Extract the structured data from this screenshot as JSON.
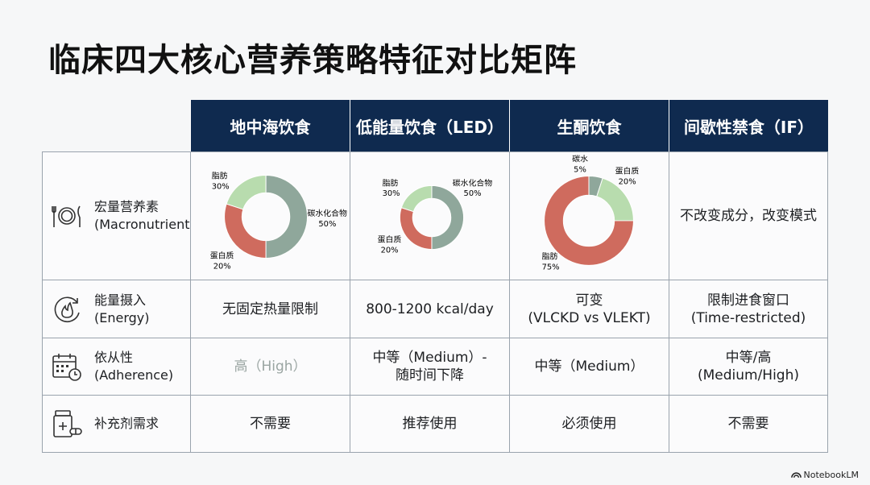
{
  "title": "临床四大核心营养策略特征对比矩阵",
  "columns": [
    "地中海饮食",
    "低能量饮食（LED）",
    "生酮饮食",
    "间歇性禁食（IF）"
  ],
  "rows": [
    {
      "label_zh": "宏量营养素",
      "label_en": "(Macronutrients)",
      "icon": "plate-fork-knife-icon"
    },
    {
      "label_zh": "能量摄入",
      "label_en": "(Energy)",
      "icon": "flame-cycle-icon"
    },
    {
      "label_zh": "依从性",
      "label_en": "(Adherence)",
      "icon": "calendar-clock-icon"
    },
    {
      "label_zh": "补充剂需求",
      "label_en": "",
      "icon": "pill-bottle-icon"
    }
  ],
  "macros": {
    "mediterranean": {
      "carb_label": "碳水化合物",
      "carb_pct": "50%",
      "fat_label": "脂肪",
      "fat_pct": "30%",
      "protein_label": "蛋白质",
      "protein_pct": "20%"
    },
    "led": {
      "carb_label": "碳水化合物",
      "carb_pct": "50%",
      "fat_label": "脂肪",
      "fat_pct": "30%",
      "protein_label": "蛋白质",
      "protein_pct": "20%"
    },
    "keto": {
      "carb_label": "碳水",
      "carb_pct": "5%",
      "protein_label": "蛋白质",
      "protein_pct": "20%",
      "fat_label": "脂肪",
      "fat_pct": "75%"
    },
    "if_text": "不改变成分，改变模式"
  },
  "chart_data": [
    {
      "type": "pie",
      "title": "",
      "categories": [
        "碳水化合物",
        "脂肪",
        "蛋白质"
      ],
      "values": [
        50,
        30,
        20
      ]
    },
    {
      "type": "pie",
      "title": "",
      "categories": [
        "碳水化合物",
        "脂肪",
        "蛋白质"
      ],
      "values": [
        50,
        30,
        20
      ]
    },
    {
      "type": "pie",
      "title": "",
      "categories": [
        "碳水",
        "蛋白质",
        "脂肪"
      ],
      "values": [
        5,
        20,
        75
      ]
    }
  ],
  "energy": {
    "mediterranean": "无固定热量限制",
    "led": "800-1200 kcal/day",
    "keto_line1": "可变",
    "keto_line2": "(VLCKD vs VLEKT)",
    "if_line1": "限制进食窗口",
    "if_line2": "(Time-restricted)"
  },
  "adherence": {
    "mediterranean": "高（High）",
    "led_line1": "中等（Medium）-",
    "led_line2": "随时间下降",
    "keto": "中等（Medium）",
    "if_line1": "中等/高",
    "if_line2": "(Medium/High)"
  },
  "supplements": {
    "mediterranean": "不需要",
    "led": "推荐使用",
    "keto": "必须使用",
    "if": "不需要"
  },
  "colors": {
    "header_bg": "#0f2a4f",
    "carb": "#8fa79b",
    "fat": "#cf6b5e",
    "protein": "#b8dcae"
  },
  "brand": "NotebookLM"
}
